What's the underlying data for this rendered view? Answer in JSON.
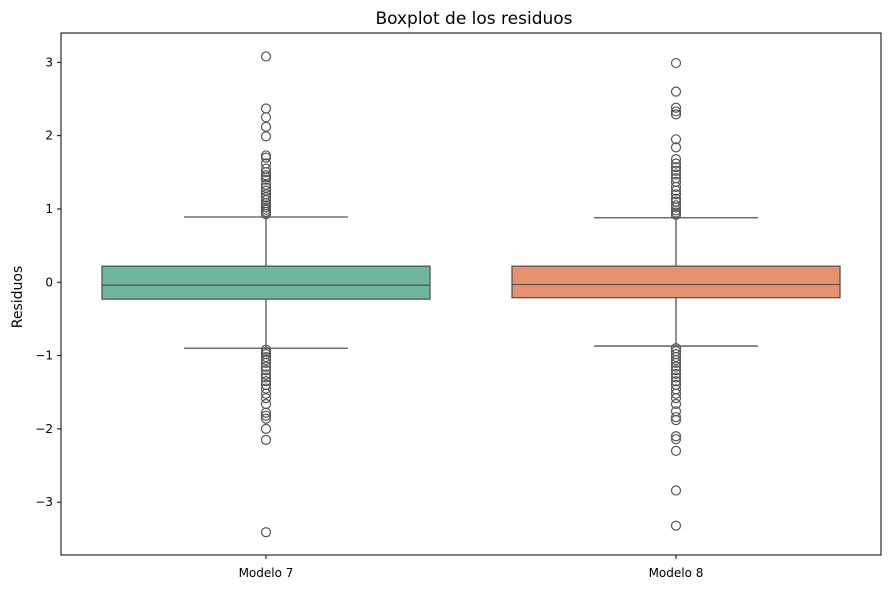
{
  "chart_data": {
    "type": "boxplot",
    "title": "Boxplot de los residuos",
    "xlabel": "",
    "ylabel": "Residuos",
    "ylim": [
      -3.72,
      3.4
    ],
    "yticks": [
      3,
      2,
      1,
      0,
      -1,
      -2,
      -3
    ],
    "ytick_labels": [
      "3",
      "2",
      "1",
      "0",
      "−1",
      "−2",
      "−3"
    ],
    "grid": false,
    "legend": "none",
    "categories": [
      "Modelo 7",
      "Modelo 8"
    ],
    "series": [
      {
        "category": "Modelo 7",
        "color": "#6fb69e",
        "q1": -0.23,
        "median": -0.04,
        "q3": 0.22,
        "whisker_low": -0.9,
        "whisker_high": 0.89,
        "fliers": [
          3.08,
          2.37,
          2.25,
          2.12,
          1.99,
          1.73,
          1.7,
          1.62,
          1.55,
          1.5,
          1.46,
          1.43,
          1.4,
          1.33,
          1.29,
          1.25,
          1.2,
          1.16,
          1.12,
          1.08,
          1.05,
          1.02,
          0.99,
          0.96,
          0.93,
          -0.92,
          -0.95,
          -0.98,
          -1.02,
          -1.06,
          -1.1,
          -1.15,
          -1.2,
          -1.26,
          -1.3,
          -1.35,
          -1.4,
          -1.45,
          -1.52,
          -1.58,
          -1.66,
          -1.78,
          -1.82,
          -1.86,
          -2.0,
          -2.15,
          -3.41
        ]
      },
      {
        "category": "Modelo 8",
        "color": "#e8916f",
        "q1": -0.21,
        "median": -0.03,
        "q3": 0.22,
        "whisker_low": -0.87,
        "whisker_high": 0.88,
        "fliers": [
          2.99,
          2.6,
          2.38,
          2.33,
          2.29,
          1.95,
          1.84,
          1.68,
          1.62,
          1.57,
          1.52,
          1.47,
          1.42,
          1.37,
          1.3,
          1.25,
          1.2,
          1.14,
          1.1,
          1.05,
          1.02,
          0.98,
          0.95,
          0.92,
          -0.9,
          -0.94,
          -0.98,
          -1.02,
          -1.06,
          -1.1,
          -1.15,
          -1.2,
          -1.25,
          -1.3,
          -1.35,
          -1.4,
          -1.46,
          -1.52,
          -1.58,
          -1.66,
          -1.76,
          -1.84,
          -1.88,
          -2.1,
          -2.14,
          -2.3,
          -2.84,
          -3.32
        ]
      }
    ]
  }
}
